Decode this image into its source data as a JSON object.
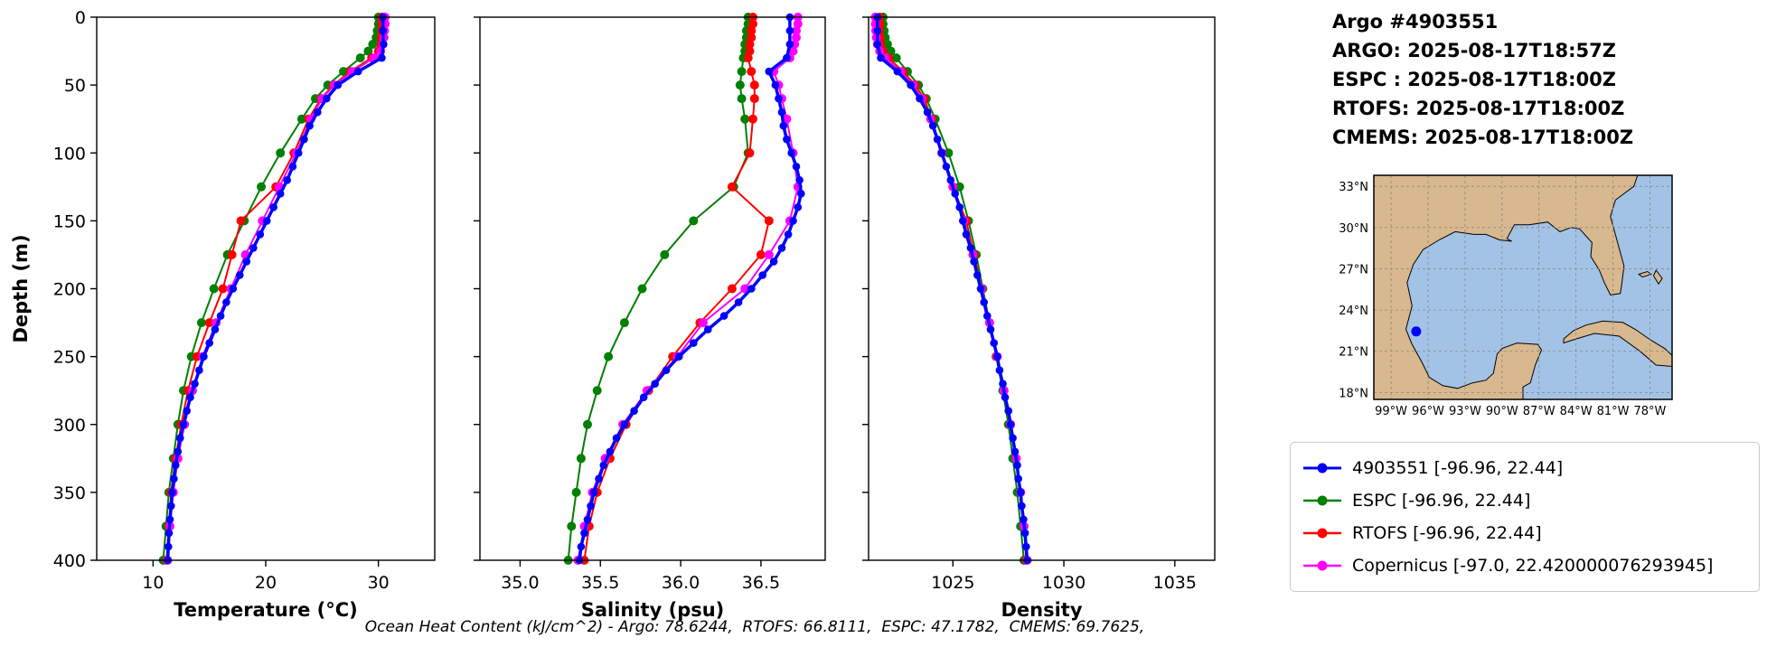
{
  "info": {
    "title": "Argo #4903551",
    "argo_line": "ARGO: 2025-08-17T18:57Z",
    "espc_line": "ESPC : 2025-08-17T18:00Z",
    "rtofs_line": "RTOFS: 2025-08-17T18:00Z",
    "cmems_line": "CMEMS: 2025-08-17T18:00Z"
  },
  "footer": {
    "ohc_text": "Ocean Heat Content (kJ/cm^2) - Argo: 78.6244,  RTOFS: 66.8111,  ESPC: 47.1782,  CMEMS: 69.7625,"
  },
  "legend": {
    "entries": [
      {
        "label": "4903551 [-96.96, 22.44]",
        "color": "#0000ff"
      },
      {
        "label": "ESPC [-96.96, 22.44]",
        "color": "#008000"
      },
      {
        "label": "RTOFS [-96.96, 22.44]",
        "color": "#ff0000"
      },
      {
        "label": "Copernicus [-97.0, 22.420000076293945]",
        "color": "#ff00ff"
      }
    ]
  },
  "map": {
    "extent": {
      "lon": [
        -100.4,
        -76.2
      ],
      "lat": [
        17.5,
        33.8
      ]
    },
    "lon_ticks": [
      -99,
      -96,
      -93,
      -90,
      -87,
      -84,
      -81,
      -78
    ],
    "lon_tick_labels": [
      "99°W",
      "96°W",
      "93°W",
      "90°W",
      "87°W",
      "84°W",
      "81°W",
      "78°W"
    ],
    "lat_ticks": [
      18,
      21,
      24,
      27,
      30,
      33
    ],
    "lat_tick_labels": [
      "18°N",
      "21°N",
      "24°N",
      "27°N",
      "30°N",
      "33°N"
    ],
    "marker": {
      "lon": -96.96,
      "lat": 22.44,
      "color": "#0000ff"
    },
    "land_color": "#d8b88e",
    "water_color": "#a3c3e6"
  },
  "chart_data": {
    "type": "line",
    "subtype": "vertical-ocean-profiles",
    "grid": false,
    "legend_position": "lower right (outside, under map)",
    "y_axis": {
      "label": "Depth (m)",
      "range": [
        0,
        400
      ],
      "inverted": true,
      "ticks": [
        0,
        50,
        100,
        150,
        200,
        250,
        300,
        350,
        400
      ]
    },
    "plots": [
      {
        "id": "temperature",
        "xlabel": "Temperature (°C)",
        "xlim": [
          5,
          35
        ],
        "xticks": [
          10,
          20,
          30
        ],
        "xtick_labels": [
          "10",
          "20",
          "30"
        ]
      },
      {
        "id": "salinity",
        "xlabel": "Salinity (psu)",
        "xlim": [
          34.75,
          36.9
        ],
        "xticks": [
          35.0,
          35.5,
          36.0,
          36.5
        ],
        "xtick_labels": [
          "35.0",
          "35.5",
          "36.0",
          "36.5"
        ]
      },
      {
        "id": "density",
        "xlabel": "Density",
        "xlim": [
          1021.2,
          1036.8
        ],
        "xticks": [
          1025,
          1030,
          1035
        ],
        "xtick_labels": [
          "1025",
          "1030",
          "1035"
        ]
      }
    ],
    "series": [
      {
        "name": "4903551",
        "source": "Argo float",
        "color": "#0000ff",
        "line_width": 3.5,
        "marker_size": 4.3,
        "depths": [
          0,
          10,
          20,
          30,
          40,
          50,
          60,
          70,
          80,
          90,
          100,
          110,
          120,
          130,
          140,
          150,
          160,
          170,
          180,
          190,
          200,
          210,
          220,
          230,
          240,
          250,
          260,
          270,
          280,
          290,
          300,
          310,
          320,
          330,
          340,
          350,
          360,
          370,
          380,
          390,
          400
        ],
        "values": {
          "temperature": [
            30.4,
            30.4,
            30.45,
            30.3,
            28.2,
            26.4,
            25.4,
            24.6,
            23.9,
            23.4,
            22.9,
            22.4,
            21.9,
            21.3,
            20.7,
            20.1,
            19.5,
            18.9,
            18.3,
            17.7,
            17.1,
            16.5,
            16.0,
            15.5,
            15.0,
            14.5,
            14.1,
            13.7,
            13.3,
            13.0,
            12.7,
            12.4,
            12.2,
            12.0,
            11.85,
            11.7,
            11.6,
            11.5,
            11.42,
            11.36,
            11.3
          ],
          "salinity": [
            36.68,
            36.68,
            36.68,
            36.66,
            36.55,
            36.59,
            36.61,
            36.63,
            36.64,
            36.66,
            36.69,
            36.72,
            36.74,
            36.75,
            36.73,
            36.7,
            36.67,
            36.63,
            36.58,
            36.51,
            36.44,
            36.36,
            36.27,
            36.17,
            36.08,
            35.99,
            35.91,
            35.84,
            35.77,
            35.71,
            35.65,
            35.6,
            35.56,
            35.52,
            35.49,
            35.46,
            35.44,
            35.42,
            35.4,
            35.38,
            35.37
          ],
          "density": [
            1021.6,
            1021.6,
            1021.6,
            1021.75,
            1022.5,
            1023.1,
            1023.5,
            1023.85,
            1024.1,
            1024.3,
            1024.5,
            1024.7,
            1024.9,
            1025.1,
            1025.3,
            1025.45,
            1025.6,
            1025.8,
            1025.95,
            1026.1,
            1026.25,
            1026.4,
            1026.55,
            1026.7,
            1026.85,
            1027.0,
            1027.1,
            1027.25,
            1027.35,
            1027.5,
            1027.6,
            1027.7,
            1027.8,
            1027.9,
            1027.95,
            1028.05,
            1028.1,
            1028.18,
            1028.25,
            1028.3,
            1028.35
          ]
        }
      },
      {
        "name": "ESPC",
        "source": "model",
        "color": "#008000",
        "line_width": 2,
        "marker_size": 5,
        "depths": [
          0,
          5,
          10,
          15,
          20,
          25,
          30,
          40,
          50,
          60,
          75,
          100,
          125,
          150,
          175,
          200,
          225,
          250,
          275,
          300,
          325,
          350,
          375,
          400
        ],
        "values": {
          "temperature": [
            30.0,
            30.0,
            29.9,
            29.8,
            29.5,
            29.1,
            28.4,
            26.9,
            25.5,
            24.4,
            23.2,
            21.3,
            19.6,
            18.1,
            16.6,
            15.4,
            14.3,
            13.4,
            12.7,
            12.2,
            11.8,
            11.4,
            11.15,
            10.9
          ],
          "salinity": [
            36.42,
            36.42,
            36.41,
            36.41,
            36.4,
            36.4,
            36.39,
            36.38,
            36.37,
            36.38,
            36.4,
            36.42,
            36.33,
            36.08,
            35.9,
            35.76,
            35.65,
            35.55,
            35.48,
            35.42,
            35.38,
            35.35,
            35.32,
            35.3
          ],
          "density": [
            1021.85,
            1021.85,
            1021.9,
            1021.95,
            1022.05,
            1022.2,
            1022.45,
            1022.95,
            1023.45,
            1023.8,
            1024.2,
            1024.8,
            1025.3,
            1025.7,
            1026.05,
            1026.35,
            1026.65,
            1026.95,
            1027.25,
            1027.5,
            1027.7,
            1027.9,
            1028.05,
            1028.2
          ]
        }
      },
      {
        "name": "RTOFS",
        "source": "model",
        "color": "#ff0000",
        "line_width": 2,
        "marker_size": 5,
        "depths": [
          0,
          5,
          10,
          15,
          20,
          25,
          30,
          40,
          50,
          60,
          75,
          100,
          125,
          150,
          175,
          200,
          225,
          250,
          275,
          300,
          325,
          350,
          375,
          400
        ],
        "values": {
          "temperature": [
            30.3,
            30.3,
            30.3,
            30.25,
            30.2,
            30.0,
            29.4,
            27.5,
            26.0,
            24.9,
            23.8,
            22.5,
            20.9,
            17.8,
            17.0,
            16.2,
            15.0,
            13.9,
            13.1,
            12.5,
            12.0,
            11.6,
            11.4,
            11.2
          ],
          "salinity": [
            36.45,
            36.45,
            36.44,
            36.44,
            36.43,
            36.43,
            36.42,
            36.44,
            36.46,
            36.46,
            36.45,
            36.43,
            36.32,
            36.55,
            36.5,
            36.32,
            36.12,
            35.95,
            35.8,
            35.66,
            35.56,
            35.48,
            35.43,
            35.4
          ],
          "density": [
            1021.7,
            1021.7,
            1021.7,
            1021.72,
            1021.75,
            1021.85,
            1022.1,
            1022.75,
            1023.3,
            1023.7,
            1024.05,
            1024.5,
            1025.0,
            1025.6,
            1025.95,
            1026.3,
            1026.65,
            1026.95,
            1027.3,
            1027.6,
            1027.85,
            1028.05,
            1028.2,
            1028.3
          ]
        }
      },
      {
        "name": "Copernicus",
        "source": "CMEMS model",
        "color": "#ff00ff",
        "line_width": 2,
        "marker_size": 5,
        "depths": [
          0,
          5,
          10,
          15,
          20,
          25,
          30,
          40,
          50,
          60,
          75,
          100,
          125,
          150,
          175,
          200,
          225,
          250,
          275,
          300,
          325,
          350,
          375,
          400
        ],
        "values": {
          "temperature": [
            30.6,
            30.6,
            30.55,
            30.5,
            30.4,
            30.2,
            29.6,
            27.7,
            26.1,
            25.0,
            24.0,
            22.7,
            21.2,
            19.7,
            18.2,
            16.9,
            15.6,
            14.4,
            13.5,
            12.8,
            12.2,
            11.8,
            11.5,
            11.3
          ],
          "salinity": [
            36.73,
            36.73,
            36.72,
            36.72,
            36.71,
            36.7,
            36.68,
            36.58,
            36.61,
            36.63,
            36.66,
            36.7,
            36.73,
            36.68,
            36.55,
            36.4,
            36.14,
            35.98,
            35.79,
            35.64,
            35.53,
            35.45,
            35.4,
            35.36
          ],
          "density": [
            1021.5,
            1021.5,
            1021.52,
            1021.55,
            1021.6,
            1021.7,
            1021.95,
            1022.65,
            1023.2,
            1023.6,
            1024.0,
            1024.5,
            1025.0,
            1025.5,
            1025.9,
            1026.3,
            1026.65,
            1027.0,
            1027.3,
            1027.6,
            1027.85,
            1028.05,
            1028.2,
            1028.35
          ]
        }
      }
    ]
  }
}
